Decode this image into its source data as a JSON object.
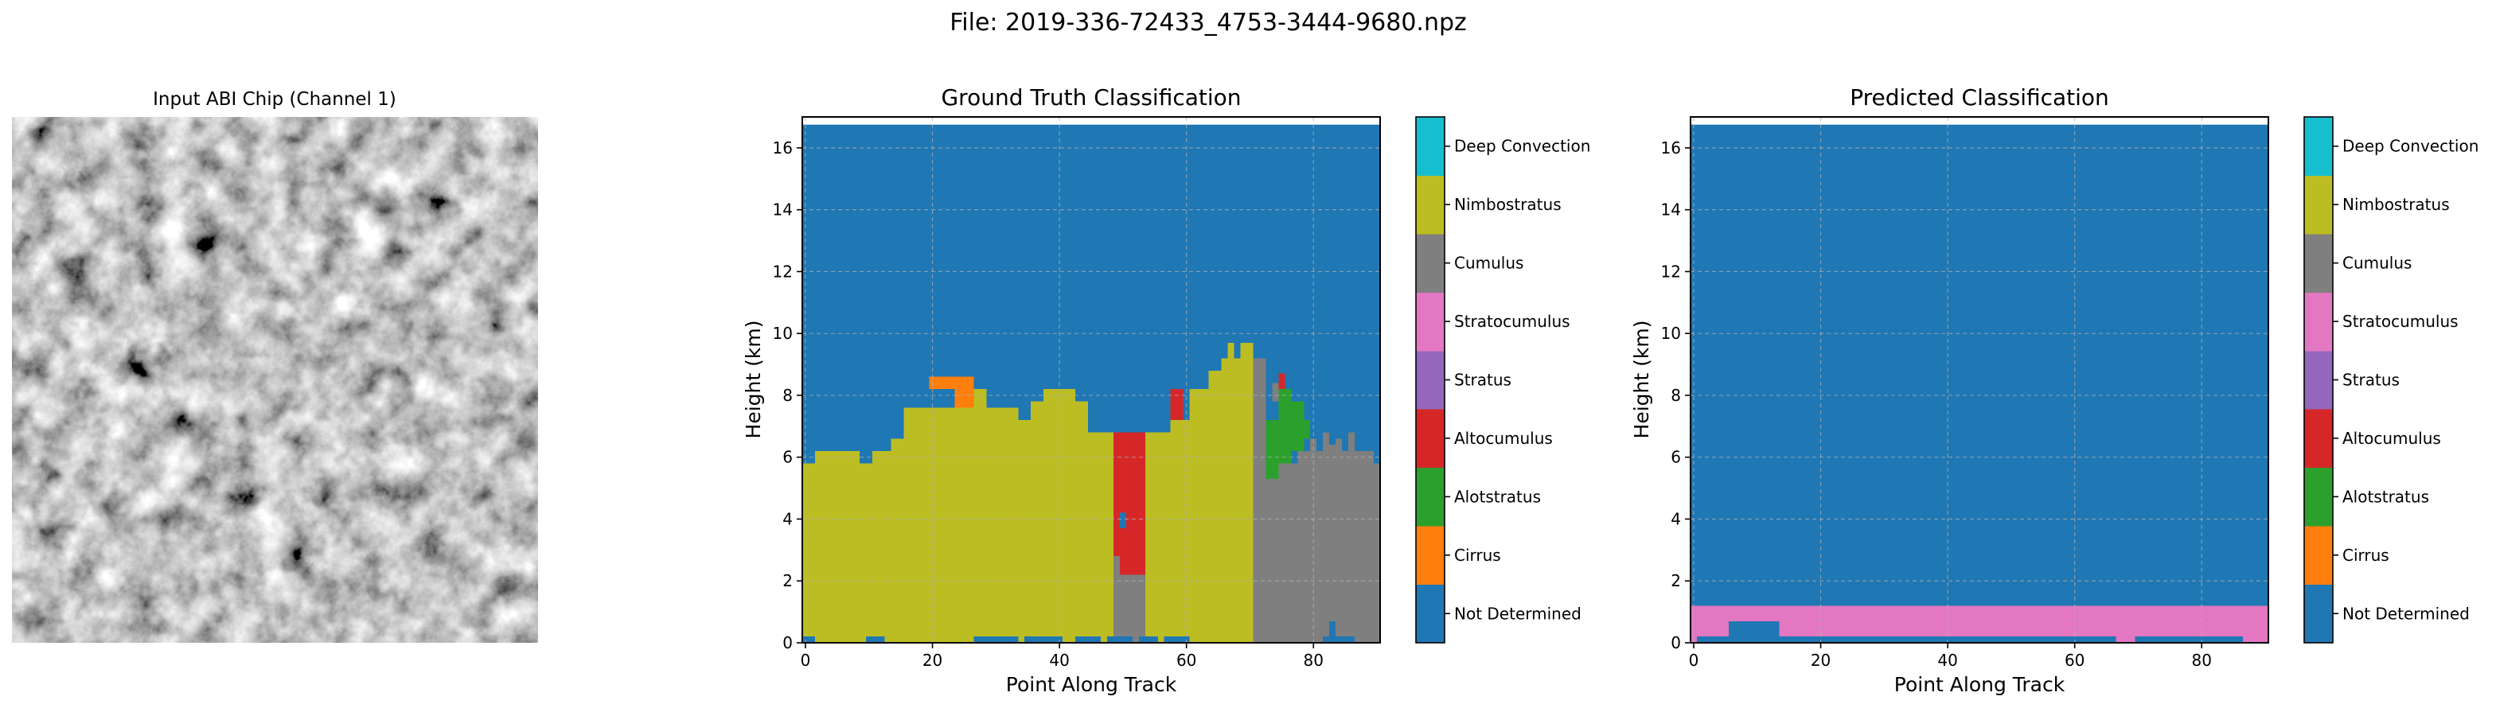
{
  "figure": {
    "suptitle": "File: 2019-336-72433_4753-3444-9680.npz"
  },
  "class_colors": {
    "Not Determined": "#1f77b4",
    "Cirrus": "#ff7f0e",
    "Alotstratus": "#2ca02c",
    "Altocumulus": "#d62728",
    "Stratus": "#9467bd",
    "Stratocumulus": "#e377c2",
    "Cumulus": "#7f7f7f",
    "Nimbostratus": "#bcbd22",
    "Deep Convection": "#17becf"
  },
  "chart_data": [
    {
      "type": "image",
      "title": "Input ABI Chip (Channel 1)",
      "colormap": "gray"
    },
    {
      "type": "heatmap",
      "title": "Ground Truth Classification",
      "xlabel": "Point Along Track",
      "ylabel": "Height (km)",
      "xlim": [
        -0.5,
        90.5
      ],
      "ylim": [
        0,
        17
      ],
      "xticks": [
        0,
        20,
        40,
        60,
        80
      ],
      "yticks": [
        0,
        2,
        4,
        6,
        8,
        10,
        12,
        14,
        16
      ],
      "grid": true,
      "background_class": "Not Determined",
      "colorbar": [
        "Not Determined",
        "Cirrus",
        "Alotstratus",
        "Altocumulus",
        "Stratus",
        "Stratocumulus",
        "Cumulus",
        "Nimbostratus",
        "Deep Convection"
      ],
      "regions": [
        {
          "class": "Nimbostratus",
          "x": [
            -0.5,
            1.5
          ],
          "y": [
            0.2,
            5.8
          ]
        },
        {
          "class": "Nimbostratus",
          "x": [
            1.5,
            8.5
          ],
          "y": [
            0,
            6.2
          ]
        },
        {
          "class": "Nimbostratus",
          "x": [
            8.5,
            10.5
          ],
          "y": [
            0,
            5.8
          ]
        },
        {
          "class": "Nimbostratus",
          "x": [
            10.5,
            13.5
          ],
          "y": [
            0,
            6.2
          ]
        },
        {
          "class": "Nimbostratus",
          "x": [
            13.5,
            15.5
          ],
          "y": [
            0,
            6.6
          ]
        },
        {
          "class": "Nimbostratus",
          "x": [
            15.5,
            23.5
          ],
          "y": [
            0,
            7.6
          ]
        },
        {
          "class": "Nimbostratus",
          "x": [
            23.5,
            28.5
          ],
          "y": [
            0,
            8.2
          ]
        },
        {
          "class": "Nimbostratus",
          "x": [
            28.5,
            33.5
          ],
          "y": [
            0,
            7.6
          ]
        },
        {
          "class": "Nimbostratus",
          "x": [
            33.5,
            35.5
          ],
          "y": [
            0,
            7.2
          ]
        },
        {
          "class": "Nimbostratus",
          "x": [
            35.5,
            37.5
          ],
          "y": [
            0,
            7.8
          ]
        },
        {
          "class": "Nimbostratus",
          "x": [
            37.5,
            42.5
          ],
          "y": [
            0,
            8.2
          ]
        },
        {
          "class": "Nimbostratus",
          "x": [
            42.5,
            44.5
          ],
          "y": [
            0,
            7.8
          ]
        },
        {
          "class": "Nimbostratus",
          "x": [
            44.5,
            48.5
          ],
          "y": [
            0,
            6.8
          ]
        },
        {
          "class": "Cirrus",
          "x": [
            19.5,
            26.5
          ],
          "y": [
            8.2,
            8.6
          ]
        },
        {
          "class": "Cirrus",
          "x": [
            23.5,
            26.5
          ],
          "y": [
            7.6,
            8.2
          ]
        },
        {
          "class": "Altocumulus",
          "x": [
            48.5,
            53.5
          ],
          "y": [
            2.2,
            6.8
          ]
        },
        {
          "class": "Not Determined",
          "x": [
            49.5,
            50.5
          ],
          "y": [
            3.7,
            4.2
          ]
        },
        {
          "class": "Cumulus",
          "x": [
            48.5,
            49.5
          ],
          "y": [
            0,
            2.8
          ]
        },
        {
          "class": "Cumulus",
          "x": [
            49.5,
            53.5
          ],
          "y": [
            0,
            2.2
          ]
        },
        {
          "class": "Nimbostratus",
          "x": [
            53.5,
            57.5
          ],
          "y": [
            0,
            6.8
          ]
        },
        {
          "class": "Nimbostratus",
          "x": [
            57.5,
            60.5
          ],
          "y": [
            0,
            7.2
          ]
        },
        {
          "class": "Nimbostratus",
          "x": [
            60.5,
            63.5
          ],
          "y": [
            0,
            8.2
          ]
        },
        {
          "class": "Nimbostratus",
          "x": [
            63.5,
            65.5
          ],
          "y": [
            0,
            8.8
          ]
        },
        {
          "class": "Nimbostratus",
          "x": [
            65.5,
            66.5
          ],
          "y": [
            0,
            9.2
          ]
        },
        {
          "class": "Nimbostratus",
          "x": [
            66.5,
            67.5
          ],
          "y": [
            0,
            9.7
          ]
        },
        {
          "class": "Nimbostratus",
          "x": [
            67.5,
            68.5
          ],
          "y": [
            0,
            9.2
          ]
        },
        {
          "class": "Nimbostratus",
          "x": [
            68.5,
            70.5
          ],
          "y": [
            0,
            9.7
          ]
        },
        {
          "class": "Altocumulus",
          "x": [
            57.5,
            59.5
          ],
          "y": [
            7.2,
            8.2
          ]
        },
        {
          "class": "Cumulus",
          "x": [
            70.5,
            72.5
          ],
          "y": [
            0,
            9.2
          ]
        },
        {
          "class": "Cumulus",
          "x": [
            72.5,
            77.5
          ],
          "y": [
            0,
            5.8
          ]
        },
        {
          "class": "Cumulus",
          "x": [
            77.5,
            79.5
          ],
          "y": [
            0,
            6.2
          ]
        },
        {
          "class": "Cumulus",
          "x": [
            79.5,
            80.5
          ],
          "y": [
            0,
            6.6
          ]
        },
        {
          "class": "Cumulus",
          "x": [
            80.5,
            81.5
          ],
          "y": [
            0,
            6.2
          ]
        },
        {
          "class": "Cumulus",
          "x": [
            81.5,
            82.5
          ],
          "y": [
            0,
            6.8
          ]
        },
        {
          "class": "Cumulus",
          "x": [
            82.5,
            83.5
          ],
          "y": [
            0,
            6.4
          ]
        },
        {
          "class": "Cumulus",
          "x": [
            83.5,
            84.5
          ],
          "y": [
            0,
            6.6
          ]
        },
        {
          "class": "Cumulus",
          "x": [
            84.5,
            85.5
          ],
          "y": [
            0,
            6.2
          ]
        },
        {
          "class": "Cumulus",
          "x": [
            85.5,
            86.5
          ],
          "y": [
            0,
            6.8
          ]
        },
        {
          "class": "Cumulus",
          "x": [
            86.5,
            89.5
          ],
          "y": [
            0,
            6.2
          ]
        },
        {
          "class": "Cumulus",
          "x": [
            89.5,
            90.5
          ],
          "y": [
            0,
            5.8
          ]
        },
        {
          "class": "Alotstratus",
          "x": [
            72.5,
            74.5
          ],
          "y": [
            5.3,
            7.2
          ]
        },
        {
          "class": "Alotstratus",
          "x": [
            74.5,
            76.5
          ],
          "y": [
            5.8,
            8.2
          ]
        },
        {
          "class": "Alotstratus",
          "x": [
            76.5,
            78.5
          ],
          "y": [
            6.2,
            7.8
          ]
        },
        {
          "class": "Alotstratus",
          "x": [
            78.5,
            79.5
          ],
          "y": [
            6.6,
            7.2
          ]
        },
        {
          "class": "Altocumulus",
          "x": [
            74.5,
            75.5
          ],
          "y": [
            8.2,
            8.7
          ]
        },
        {
          "class": "Cumulus",
          "x": [
            73.5,
            74.5
          ],
          "y": [
            7.8,
            8.4
          ]
        },
        {
          "class": "Not Determined",
          "x": [
            -0.5,
            1.5
          ],
          "y": [
            0,
            0.2
          ]
        },
        {
          "class": "Not Determined",
          "x": [
            9.5,
            12.5
          ],
          "y": [
            0,
            0.2
          ]
        },
        {
          "class": "Not Determined",
          "x": [
            26.5,
            33.5
          ],
          "y": [
            0,
            0.2
          ]
        },
        {
          "class": "Not Determined",
          "x": [
            34.5,
            40.5
          ],
          "y": [
            0,
            0.2
          ]
        },
        {
          "class": "Not Determined",
          "x": [
            42.5,
            46.5
          ],
          "y": [
            0,
            0.2
          ]
        },
        {
          "class": "Not Determined",
          "x": [
            47.5,
            51.5
          ],
          "y": [
            0,
            0.2
          ]
        },
        {
          "class": "Not Determined",
          "x": [
            52.5,
            55.5
          ],
          "y": [
            0,
            0.2
          ]
        },
        {
          "class": "Not Determined",
          "x": [
            56.5,
            60.5
          ],
          "y": [
            0,
            0.2
          ]
        },
        {
          "class": "Not Determined",
          "x": [
            82.5,
            83.5
          ],
          "y": [
            0,
            0.7
          ]
        },
        {
          "class": "Not Determined",
          "x": [
            81.5,
            86.5
          ],
          "y": [
            0,
            0.2
          ]
        }
      ]
    },
    {
      "type": "heatmap",
      "title": "Predicted Classification",
      "xlabel": "Point Along Track",
      "ylabel": "Height (km)",
      "xlim": [
        -0.5,
        90.5
      ],
      "ylim": [
        0,
        17
      ],
      "xticks": [
        0,
        20,
        40,
        60,
        80
      ],
      "yticks": [
        0,
        2,
        4,
        6,
        8,
        10,
        12,
        14,
        16
      ],
      "grid": true,
      "background_class": "Not Determined",
      "colorbar": [
        "Not Determined",
        "Cirrus",
        "Alotstratus",
        "Altocumulus",
        "Stratus",
        "Stratocumulus",
        "Cumulus",
        "Nimbostratus",
        "Deep Convection"
      ],
      "regions": [
        {
          "class": "Stratocumulus",
          "x": [
            -0.5,
            5.5
          ],
          "y": [
            0.2,
            1.2
          ]
        },
        {
          "class": "Stratocumulus",
          "x": [
            5.5,
            13.5
          ],
          "y": [
            0.7,
            1.2
          ]
        },
        {
          "class": "Stratocumulus",
          "x": [
            13.5,
            90.5
          ],
          "y": [
            0.2,
            1.2
          ]
        },
        {
          "class": "Stratocumulus",
          "x": [
            -0.5,
            0.5
          ],
          "y": [
            0,
            0.2
          ]
        },
        {
          "class": "Stratocumulus",
          "x": [
            66.5,
            69.5
          ],
          "y": [
            0,
            0.2
          ]
        },
        {
          "class": "Stratocumulus",
          "x": [
            86.5,
            90.5
          ],
          "y": [
            0,
            0.2
          ]
        }
      ]
    }
  ]
}
